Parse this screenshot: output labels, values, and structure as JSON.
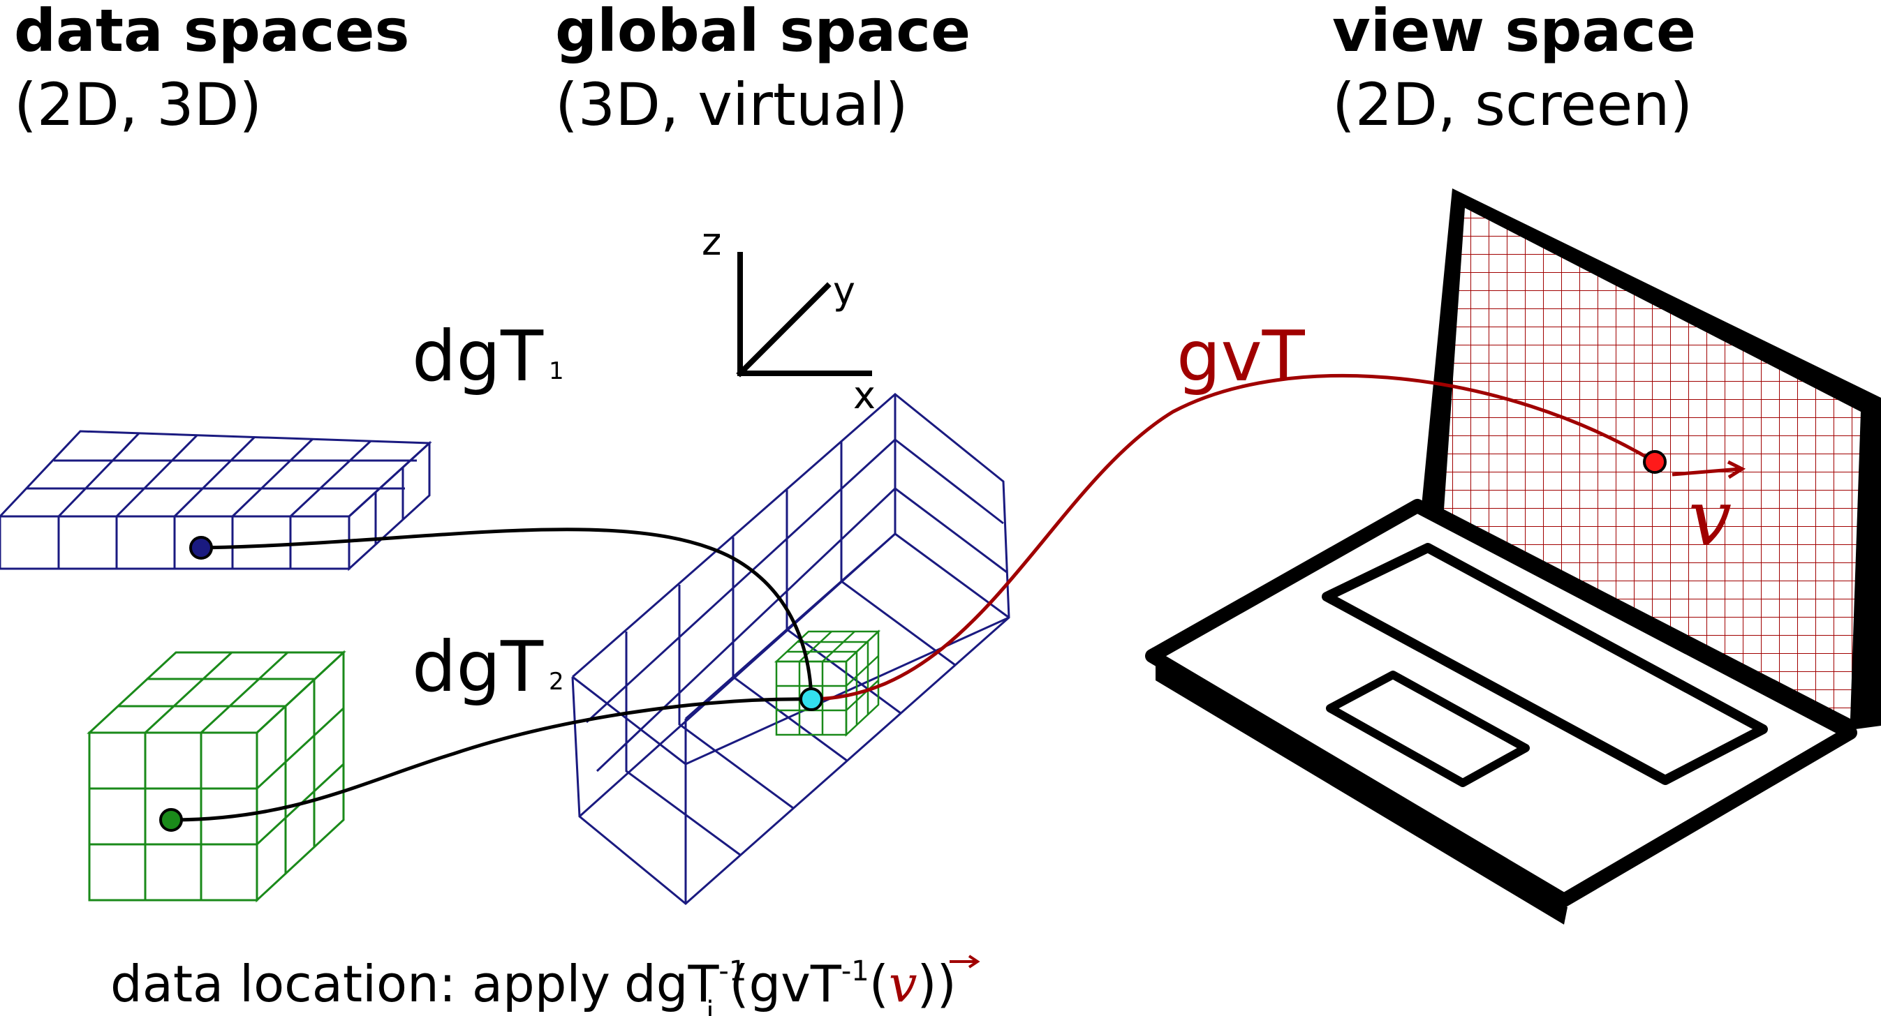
{
  "headers": {
    "data_spaces": {
      "title": "data spaces",
      "subtitle": "(2D, 3D)"
    },
    "global_space": {
      "title": "global space",
      "subtitle": "(3D, virtual)"
    },
    "view_space": {
      "title": "view space",
      "subtitle": "(2D, screen)"
    }
  },
  "axes": {
    "x": "x",
    "y": "y",
    "z": "z"
  },
  "transforms": {
    "dgT1": {
      "base": "dgT",
      "sub": "1"
    },
    "dgT2": {
      "base": "dgT",
      "sub": "2"
    },
    "gvT": "gvT"
  },
  "vector_symbol": "v",
  "caption": {
    "prefix": "data location: apply",
    "f1": "dgT",
    "f1_sub": "i",
    "f1_sup": "-1",
    "open1": "(",
    "f2": "gvT",
    "f2_sup": "-1",
    "open2": "(",
    "v": "v",
    "close": "))"
  },
  "colors": {
    "blue": "#1a1a80",
    "green": "#1a8a1a",
    "red": "#a00000",
    "cyan": "#33e0f0",
    "black": "#000000"
  }
}
